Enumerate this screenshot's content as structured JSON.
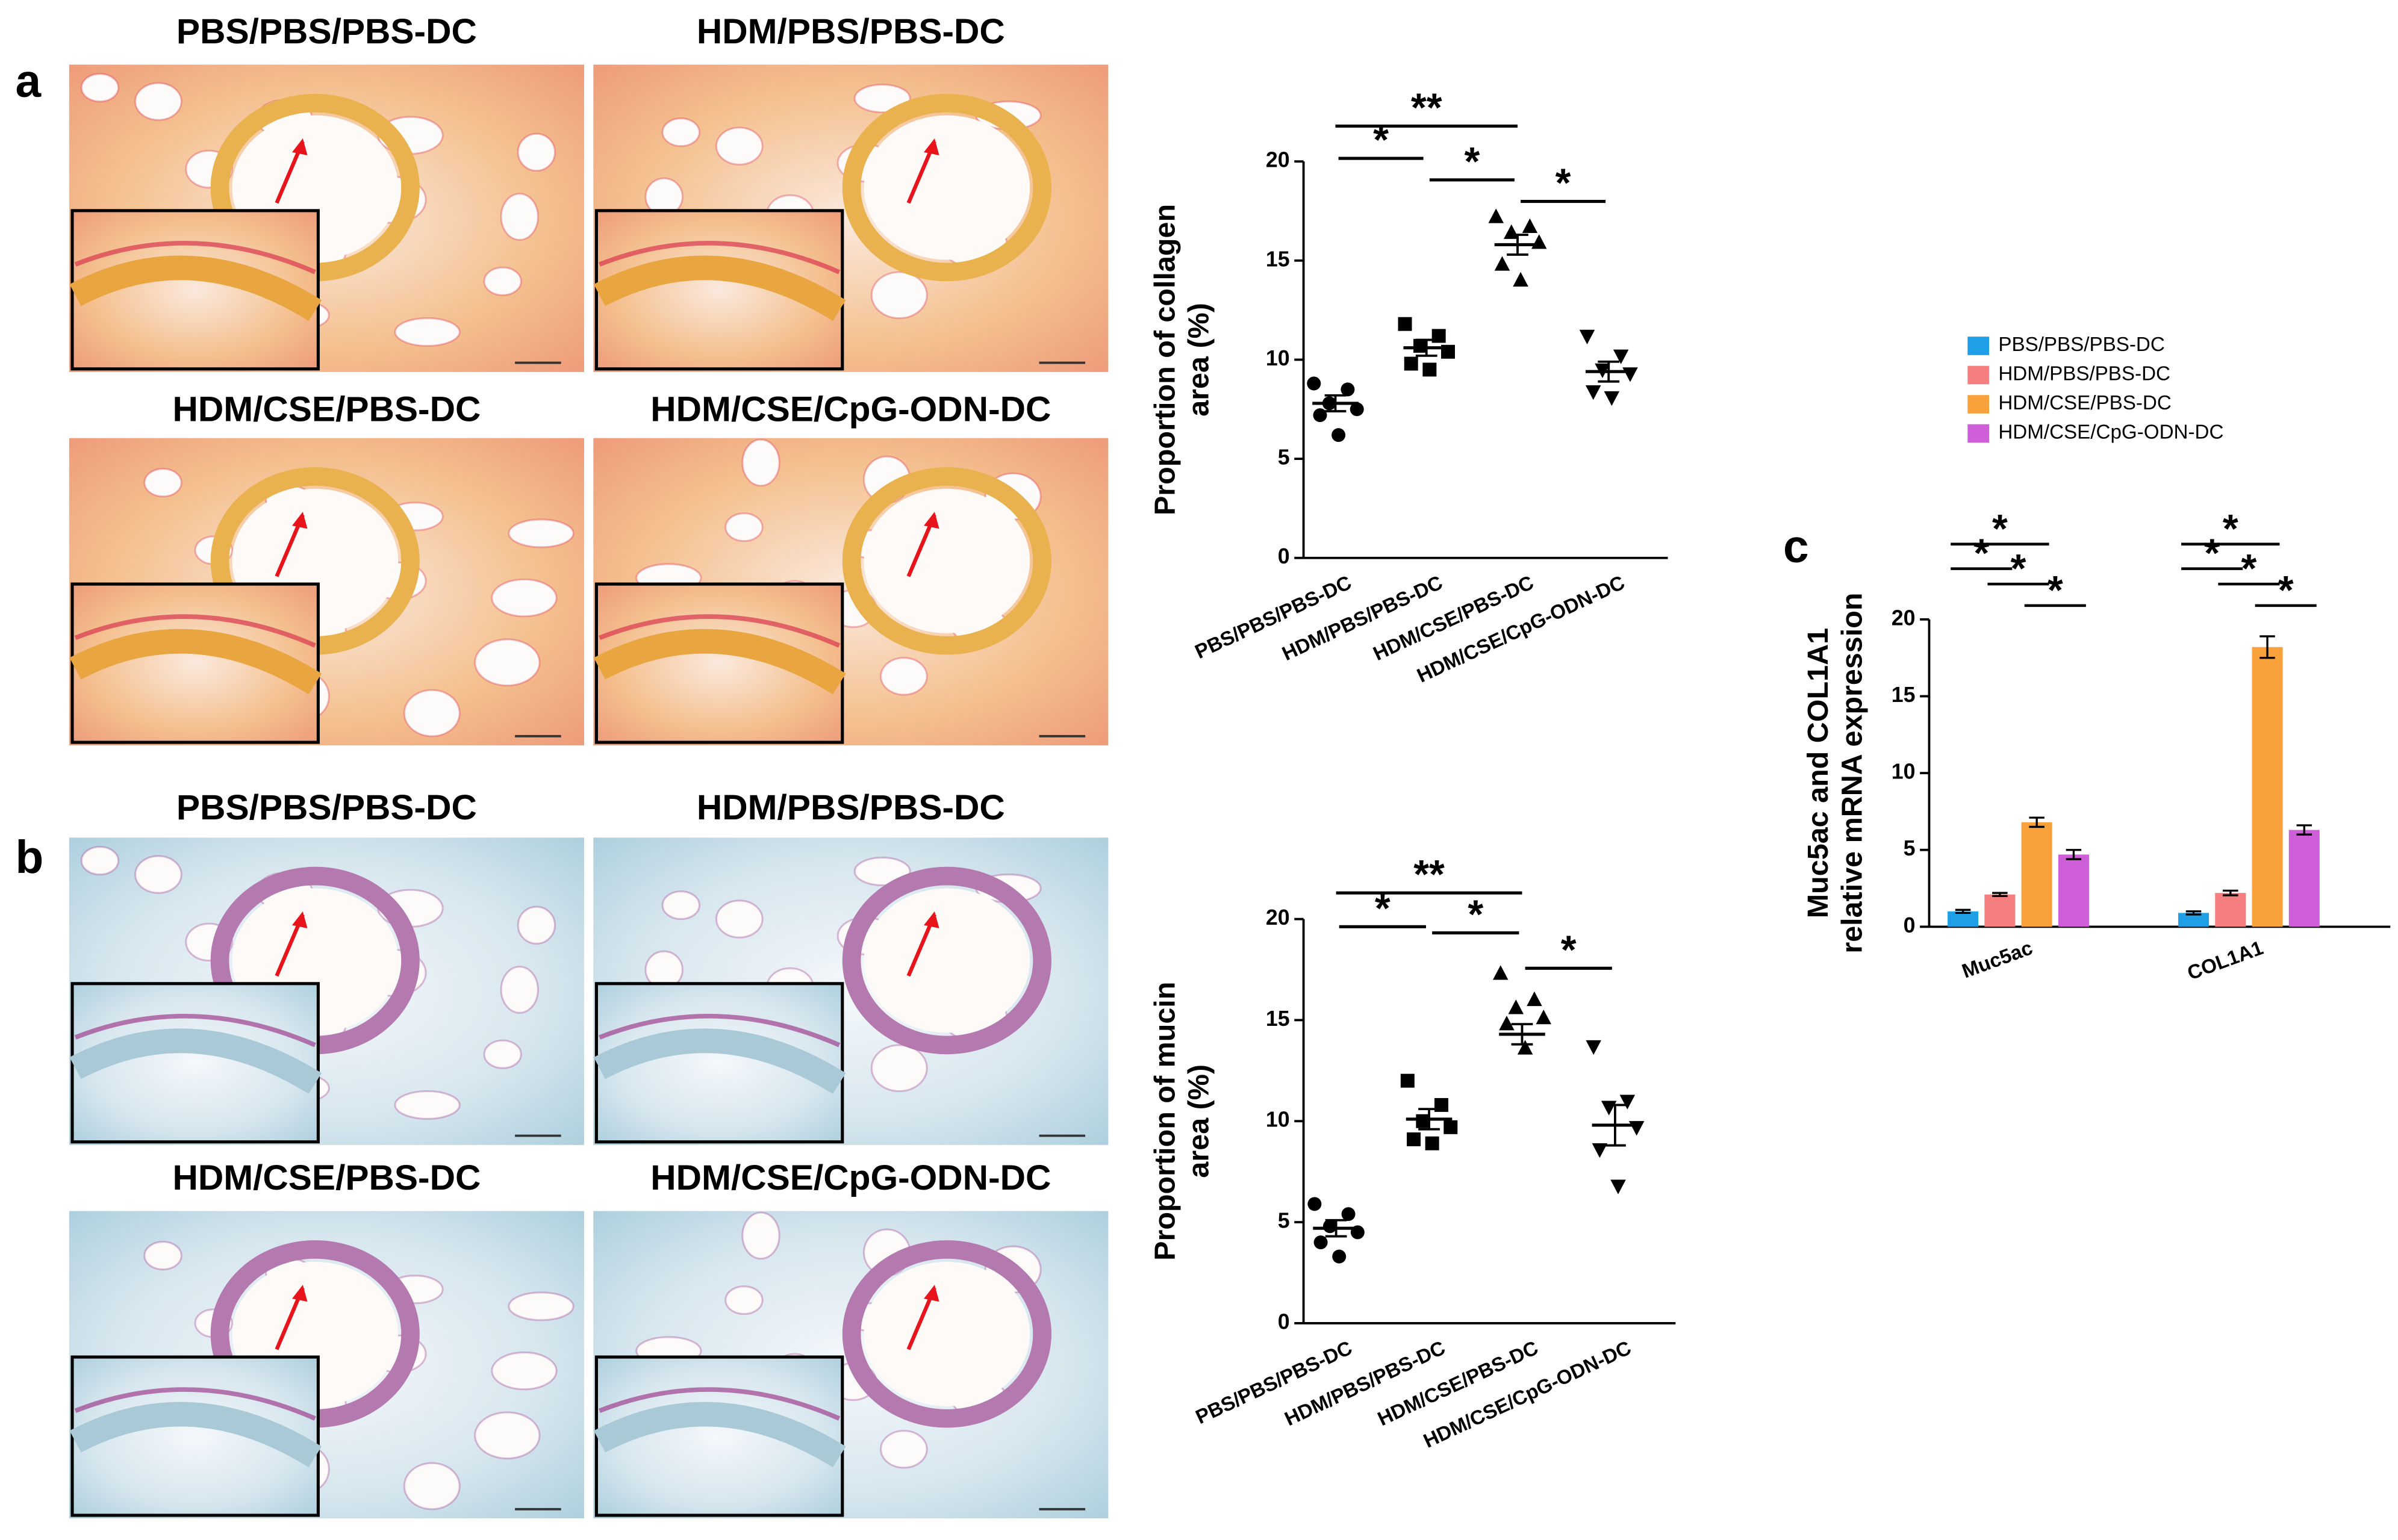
{
  "panels": [
    {
      "label": "a",
      "images": [
        "PBS/PBS/PBS-DC",
        "HDM/PBS/PBS-DC",
        "HDM/CSE/PBS-DC",
        "HDM/CSE/CpG-ODN-DC"
      ]
    },
    {
      "label": "b",
      "images": [
        "PBS/PBS/PBS-DC",
        "HDM/PBS/PBS-DC",
        "HDM/CSE/PBS-DC",
        "HDM/CSE/CpG-ODN-DC"
      ]
    }
  ],
  "chart_data": [
    {
      "type": "dotplot",
      "y_label": [
        "Proportion of collagen",
        "area (%)"
      ],
      "categories": [
        "PBS/PBS/PBS-DC",
        "HDM/PBS/PBS-DC",
        "HDM/CSE/PBS-DC",
        "HDM/CSE/CpG-ODN-DC"
      ],
      "markers": [
        "circle",
        "square",
        "triangle",
        "triangle-down"
      ],
      "points": [
        [
          8.8,
          8.5,
          7.8,
          7.5,
          7.2,
          6.2
        ],
        [
          11.8,
          11.2,
          10.7,
          10.4,
          9.8,
          9.5
        ],
        [
          17.2,
          16.7,
          16.4,
          15.9,
          14.8,
          14.0
        ],
        [
          11.2,
          10.2,
          9.5,
          9.3,
          8.4,
          8.1
        ]
      ],
      "means": [
        7.8,
        10.6,
        15.8,
        9.4
      ],
      "errors": [
        0.4,
        0.4,
        0.5,
        0.5
      ],
      "ylim": [
        0,
        20
      ],
      "yticks": [
        0,
        5,
        10,
        15,
        20
      ],
      "significance": [
        {
          "from": 0,
          "to": 2,
          "label": "**"
        },
        {
          "from": 0,
          "to": 1,
          "label": "*"
        },
        {
          "from": 1,
          "to": 2,
          "label": "*"
        },
        {
          "from": 2,
          "to": 3,
          "label": "*"
        }
      ]
    },
    {
      "type": "dotplot",
      "y_label": [
        "Proportion of mucin",
        "area (%)"
      ],
      "categories": [
        "PBS/PBS/PBS-DC",
        "HDM/PBS/PBS-DC",
        "HDM/CSE/PBS-DC",
        "HDM/CSE/CpG-ODN-DC"
      ],
      "markers": [
        "circle",
        "square",
        "triangle",
        "triangle-down"
      ],
      "points": [
        [
          5.9,
          5.4,
          4.8,
          4.5,
          4.0,
          3.3
        ],
        [
          12.0,
          10.8,
          10.0,
          9.7,
          9.1,
          8.9
        ],
        [
          17.3,
          16.0,
          15.6,
          15.1,
          14.8,
          13.6
        ],
        [
          13.7,
          11.0,
          10.7,
          9.7,
          8.6,
          6.8
        ]
      ],
      "means": [
        4.7,
        10.1,
        14.3,
        9.8
      ],
      "errors": [
        0.4,
        0.5,
        0.5,
        1.0
      ],
      "ylim": [
        0,
        20
      ],
      "yticks": [
        0,
        5,
        10,
        15,
        20
      ],
      "significance": [
        {
          "from": 0,
          "to": 2,
          "label": "**"
        },
        {
          "from": 0,
          "to": 1,
          "label": "*"
        },
        {
          "from": 1,
          "to": 2,
          "label": "*"
        },
        {
          "from": 2,
          "to": 3,
          "label": "*"
        }
      ]
    },
    {
      "type": "bar",
      "panel_label": "c",
      "y_label": [
        "Muc5ac and COL1A1",
        "relative mRNA expression"
      ],
      "categories": [
        "Muc5ac",
        "COL1A1"
      ],
      "series": [
        {
          "name": "PBS/PBS/PBS-DC",
          "color": "#1e9fe6",
          "values": [
            1.0,
            0.9
          ],
          "errors": [
            0.1,
            0.1
          ]
        },
        {
          "name": "HDM/PBS/PBS-DC",
          "color": "#f57f7f",
          "values": [
            2.1,
            2.2
          ],
          "errors": [
            0.1,
            0.15
          ]
        },
        {
          "name": "HDM/CSE/PBS-DC",
          "color": "#f9a13a",
          "values": [
            6.8,
            18.2
          ],
          "errors": [
            0.3,
            0.7
          ]
        },
        {
          "name": "HDM/CSE/CpG-ODN-DC",
          "color": "#cf5fd8",
          "values": [
            4.7,
            6.3
          ],
          "errors": [
            0.3,
            0.3
          ]
        }
      ],
      "ylim": [
        0,
        20
      ],
      "yticks": [
        0,
        5,
        10,
        15,
        20
      ],
      "significance": [
        {
          "from": 0,
          "to": 2,
          "label": "*"
        },
        {
          "from": 0,
          "to": 1,
          "label": "*"
        },
        {
          "from": 1,
          "to": 2,
          "label": "*"
        },
        {
          "from": 2,
          "to": 3,
          "label": "*"
        }
      ]
    }
  ]
}
